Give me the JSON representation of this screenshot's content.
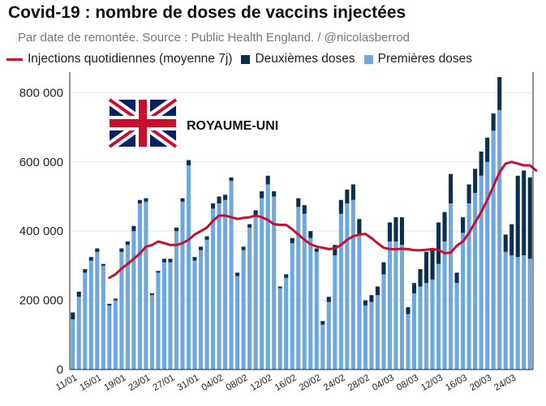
{
  "chart_data": {
    "type": "bar",
    "title": "Covid-19 : nombre de doses de vaccins injectées",
    "subtitle": "Par date de remontée. Source : Public Health England. / @nicolasberrod",
    "annotation": "ROYAUME-UNI",
    "ylim": [
      0,
      850000
    ],
    "y_ticks": [
      0,
      200000,
      400000,
      600000,
      800000
    ],
    "y_tick_labels": [
      "0",
      "200 000",
      "400 000",
      "600 000",
      "800 000"
    ],
    "x_tick_labels": [
      "11/01",
      "15/01",
      "19/01",
      "23/01",
      "27/01",
      "31/01",
      "04/02",
      "08/02",
      "12/02",
      "16/02",
      "20/02",
      "24/02",
      "28/02",
      "04/03",
      "08/03",
      "12/03",
      "16/03",
      "20/03",
      "24/03"
    ],
    "x_tick_interval": 4,
    "colors": {
      "first": "#6fa8dc",
      "second": "#0b2f4f",
      "line": "#c8102e"
    },
    "series": [
      {
        "name": "Premières doses",
        "values": [
          145000,
          210000,
          280000,
          315000,
          340000,
          300000,
          185000,
          200000,
          340000,
          360000,
          400000,
          480000,
          485000,
          215000,
          280000,
          310000,
          310000,
          400000,
          485000,
          590000,
          315000,
          345000,
          375000,
          465000,
          480000,
          490000,
          545000,
          270000,
          345000,
          410000,
          445000,
          495000,
          535000,
          500000,
          235000,
          265000,
          365000,
          470000,
          450000,
          380000,
          340000,
          130000,
          195000,
          330000,
          450000,
          480000,
          490000,
          390000,
          185000,
          195000,
          215000,
          275000,
          370000,
          370000,
          360000,
          160000,
          220000,
          240000,
          250000,
          260000,
          305000,
          370000,
          480000,
          250000,
          395000,
          480000,
          510000,
          560000,
          600000,
          690000,
          750000,
          340000,
          330000,
          325000,
          330000,
          320000
        ]
      },
      {
        "name": "Deuxièmes doses",
        "values": [
          20000,
          15000,
          10000,
          10000,
          10000,
          5000,
          5000,
          5000,
          10000,
          10000,
          15000,
          10000,
          10000,
          5000,
          5000,
          10000,
          10000,
          10000,
          10000,
          15000,
          10000,
          10000,
          10000,
          15000,
          20000,
          15000,
          10000,
          10000,
          10000,
          10000,
          15000,
          20000,
          25000,
          15000,
          5000,
          10000,
          15000,
          25000,
          25000,
          20000,
          10000,
          10000,
          15000,
          30000,
          40000,
          40000,
          45000,
          45000,
          15000,
          20000,
          25000,
          35000,
          55000,
          70000,
          80000,
          20000,
          30000,
          50000,
          90000,
          90000,
          120000,
          85000,
          85000,
          30000,
          45000,
          55000,
          70000,
          70000,
          70000,
          50000,
          95000,
          50000,
          90000,
          235000,
          245000,
          235000
        ]
      }
    ],
    "line": {
      "name": "Injections quotidiennes (moyenne 7j)",
      "start_index": 6,
      "values": [
        265000,
        275000,
        292000,
        305000,
        320000,
        335000,
        355000,
        360000,
        370000,
        365000,
        360000,
        360000,
        365000,
        375000,
        390000,
        400000,
        410000,
        430000,
        445000,
        445000,
        440000,
        435000,
        438000,
        440000,
        445000,
        440000,
        432000,
        420000,
        418000,
        418000,
        405000,
        390000,
        375000,
        362000,
        355000,
        352000,
        348000,
        350000,
        360000,
        375000,
        385000,
        390000,
        392000,
        380000,
        365000,
        352000,
        348000,
        348000,
        349000,
        348000,
        345000,
        345000,
        346000,
        348000,
        346000,
        336000,
        338000,
        358000,
        370000,
        395000,
        425000,
        455000,
        490000,
        530000,
        570000,
        595000,
        600000,
        595000,
        590000,
        590000,
        575000
      ]
    }
  }
}
